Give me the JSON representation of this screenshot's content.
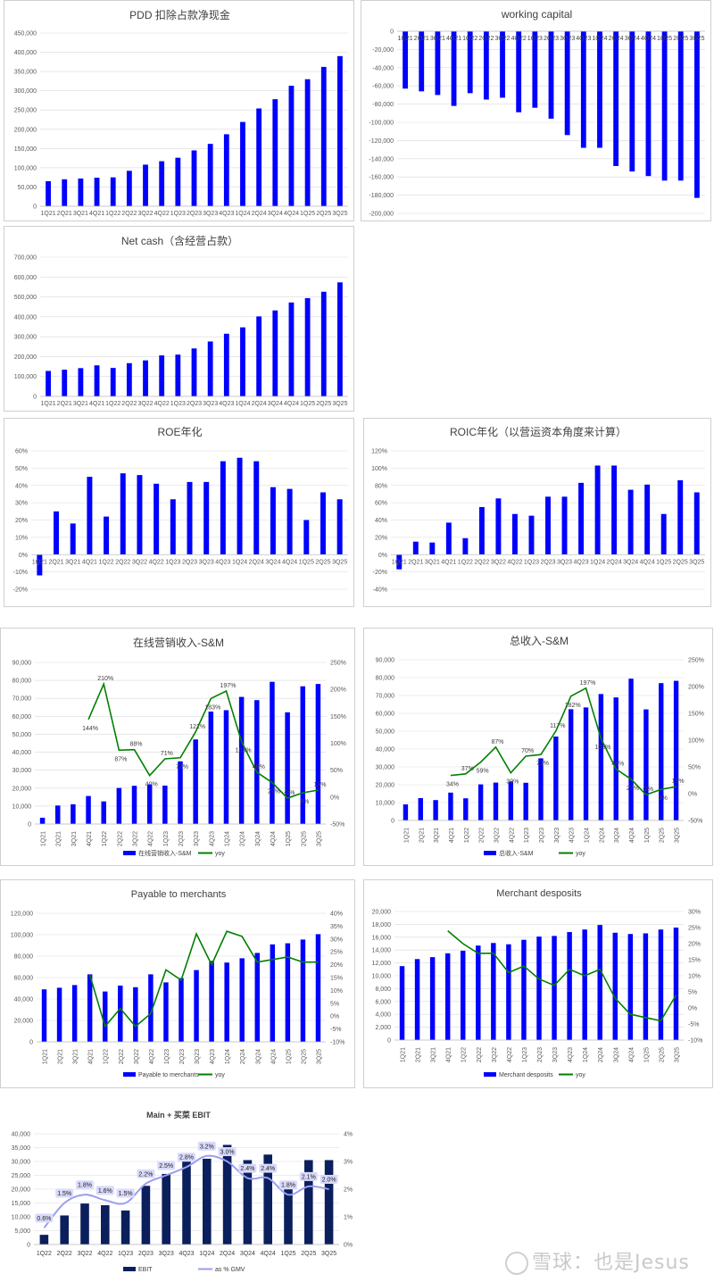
{
  "colors": {
    "bar": "#0000ff",
    "line": "#008000",
    "navy": "#0a1f5c",
    "lavender": "#9a9ef0",
    "axis": "#d9d9d9",
    "text": "#595959"
  },
  "watermark": "雪球：也是Jesus",
  "chart_data": [
    {
      "id": "c1",
      "type": "bar",
      "title": "PDD 扣除占款净现金",
      "categories": [
        "1Q21",
        "2Q21",
        "3Q21",
        "4Q21",
        "1Q22",
        "2Q22",
        "3Q22",
        "4Q22",
        "1Q23",
        "2Q23",
        "3Q23",
        "4Q23",
        "1Q24",
        "2Q24",
        "3Q24",
        "4Q24",
        "1Q25",
        "2Q25",
        "3Q25"
      ],
      "category_label_mode": "concat",
      "values": [
        65000,
        70000,
        72000,
        74000,
        75000,
        92000,
        108000,
        117000,
        126000,
        145000,
        162000,
        187000,
        219000,
        254000,
        278000,
        313000,
        330000,
        362000,
        390000
      ],
      "ylim": [
        0,
        450000
      ],
      "yticks": [
        0,
        50000,
        100000,
        150000,
        200000,
        250000,
        300000,
        350000,
        400000,
        450000
      ],
      "tick_labels": [
        "0",
        "50,000",
        "100,000",
        "150,000",
        "200,000",
        "250,000",
        "300,000",
        "350,000",
        "400,000",
        "450,000"
      ]
    },
    {
      "id": "c2",
      "type": "bar",
      "title": "working capital",
      "categories": [
        "1Q21",
        "2Q21",
        "3Q21",
        "4Q21",
        "1Q22",
        "2Q22",
        "3Q22",
        "4Q22",
        "1Q23",
        "2Q23",
        "3Q23",
        "4Q23",
        "1Q24",
        "2Q24",
        "3Q24",
        "4Q24",
        "1Q25",
        "2Q25",
        "3Q25"
      ],
      "category_label_mode": "concat-top",
      "values": [
        -63000,
        -66000,
        -70000,
        -82000,
        -68000,
        -75000,
        -73000,
        -89000,
        -84000,
        -96000,
        -114000,
        -128000,
        -128000,
        -148000,
        -154000,
        -159000,
        -164000,
        -164000,
        -183000
      ],
      "ylim": [
        -200000,
        0
      ],
      "yticks": [
        0,
        -20000,
        -40000,
        -60000,
        -80000,
        -100000,
        -120000,
        -140000,
        -160000,
        -180000,
        -200000
      ],
      "tick_labels": [
        "0",
        "-20,000",
        "-40,000",
        "-60,000",
        "-80,000",
        "-100,000",
        "-120,000",
        "-140,000",
        "-160,000",
        "-180,000",
        "-200,000"
      ]
    },
    {
      "id": "c3",
      "type": "bar",
      "title": "Net cash（含经营占款）",
      "categories": [
        "1Q21",
        "2Q21",
        "3Q21",
        "4Q21",
        "1Q22",
        "2Q22",
        "3Q22",
        "4Q22",
        "1Q23",
        "2Q23",
        "3Q23",
        "4Q23",
        "1Q24",
        "2Q24",
        "3Q24",
        "4Q24",
        "1Q25",
        "2Q25",
        "3Q25"
      ],
      "category_label_mode": "concat",
      "values": [
        128000,
        134000,
        142000,
        156000,
        143000,
        167000,
        181000,
        206000,
        210000,
        241000,
        276000,
        315000,
        347000,
        402000,
        432000,
        472000,
        494000,
        526000,
        573000
      ],
      "ylim": [
        0,
        700000
      ],
      "yticks": [
        0,
        100000,
        200000,
        300000,
        400000,
        500000,
        600000,
        700000
      ],
      "tick_labels": [
        "0",
        "100,000",
        "200,000",
        "300,000",
        "400,000",
        "500,000",
        "600,000",
        "700,000"
      ]
    },
    {
      "id": "c4",
      "type": "bar",
      "title": "ROE年化",
      "categories": [
        "1Q21",
        "2Q21",
        "3Q21",
        "4Q21",
        "1Q22",
        "2Q22",
        "3Q22",
        "4Q22",
        "1Q23",
        "2Q23",
        "3Q23",
        "4Q23",
        "1Q24",
        "2Q24",
        "3Q24",
        "4Q24",
        "1Q25",
        "2Q25",
        "3Q25"
      ],
      "category_label_mode": "concat",
      "values": [
        -12,
        25,
        18,
        45,
        22,
        47,
        46,
        41,
        32,
        42,
        42,
        54,
        56,
        54,
        39,
        38,
        20,
        36,
        32
      ],
      "ylim": [
        -20,
        60
      ],
      "yticks": [
        -20,
        -10,
        0,
        10,
        20,
        30,
        40,
        50,
        60
      ],
      "tick_labels": [
        "-20%",
        "-10%",
        "0%",
        "10%",
        "20%",
        "30%",
        "40%",
        "50%",
        "60%"
      ]
    },
    {
      "id": "c5",
      "type": "bar",
      "title": "ROIC年化（以营运资本角度来计算）",
      "categories": [
        "1Q21",
        "2Q21",
        "3Q21",
        "4Q21",
        "1Q22",
        "2Q22",
        "3Q22",
        "4Q22",
        "1Q23",
        "2Q23",
        "3Q23",
        "4Q23",
        "1Q24",
        "2Q24",
        "3Q24",
        "4Q24",
        "1Q25",
        "2Q25",
        "3Q25"
      ],
      "category_label_mode": "concat",
      "values": [
        -17,
        15,
        14,
        37,
        19,
        55,
        65,
        47,
        45,
        67,
        67,
        83,
        103,
        103,
        75,
        81,
        47,
        86,
        72
      ],
      "ylim": [
        -40,
        120
      ],
      "yticks": [
        -40,
        -20,
        0,
        20,
        40,
        60,
        80,
        100,
        120
      ],
      "tick_labels": [
        "-40%",
        "-20%",
        "0%",
        "20%",
        "40%",
        "60%",
        "80%",
        "100%",
        "120%"
      ]
    },
    {
      "id": "c6",
      "type": "bar+line",
      "title": "在线营销收入-S&M",
      "categories": [
        "1Q21",
        "2Q21",
        "3Q21",
        "4Q21",
        "1Q22",
        "2Q22",
        "3Q22",
        "4Q22",
        "1Q23",
        "2Q23",
        "3Q23",
        "4Q23",
        "1Q24",
        "2Q24",
        "3Q24",
        "4Q24",
        "1Q25",
        "2Q25",
        "3Q25"
      ],
      "category_label_mode": "rotated",
      "series": [
        {
          "name": "在线营销收入-S&M",
          "kind": "bar",
          "values": [
            3500,
            10300,
            11000,
            15600,
            12600,
            20100,
            21300,
            22100,
            21400,
            34900,
            47100,
            62600,
            63400,
            70800,
            69000,
            79200,
            62200,
            76700,
            78000
          ]
        },
        {
          "name": "yoy",
          "kind": "line",
          "values": [
            null,
            null,
            null,
            144,
            210,
            87,
            88,
            40,
            71,
            73,
            121,
            183,
            197,
            103,
            46,
            27,
            -2,
            8,
            13
          ]
        }
      ],
      "data_labels": [
        "",
        "",
        "",
        "144%",
        "210%",
        "87%",
        "88%",
        "40%",
        "71%",
        "73%",
        "121%",
        "183%",
        "197%",
        "103%",
        "46%",
        "27%",
        "-2%",
        "8%",
        "13%"
      ],
      "ylim": [
        0,
        90000
      ],
      "yticks": [
        0,
        10000,
        20000,
        30000,
        40000,
        50000,
        60000,
        70000,
        80000,
        90000
      ],
      "tick_labels": [
        "0",
        "10,000",
        "20,000",
        "30,000",
        "40,000",
        "50,000",
        "60,000",
        "70,000",
        "80,000",
        "90,000"
      ],
      "y2lim": [
        -50,
        250
      ],
      "y2ticks": [
        -50,
        0,
        50,
        100,
        150,
        200,
        250
      ],
      "y2_labels": [
        "-50%",
        "0%",
        "50%",
        "100%",
        "150%",
        "200%",
        "250%"
      ],
      "legend": [
        "在线营销收入-S&M",
        "yoy"
      ]
    },
    {
      "id": "c7",
      "type": "bar+line",
      "title": "总收入-S&M",
      "categories": [
        "1Q21",
        "2Q21",
        "3Q21",
        "4Q21",
        "1Q22",
        "2Q22",
        "3Q22",
        "4Q22",
        "1Q23",
        "2Q23",
        "3Q23",
        "4Q23",
        "1Q24",
        "2Q24",
        "3Q24",
        "4Q24",
        "1Q25",
        "2Q25",
        "3Q25"
      ],
      "category_label_mode": "rotated",
      "series": [
        {
          "name": "总收入-S&M",
          "kind": "bar",
          "values": [
            9000,
            12500,
            11400,
            15600,
            12400,
            20200,
            21200,
            21800,
            21100,
            34800,
            47000,
            62300,
            63300,
            70800,
            68900,
            79400,
            62200,
            76900,
            78200
          ]
        },
        {
          "name": "yoy",
          "kind": "line",
          "values": [
            null,
            null,
            null,
            34,
            37,
            59,
            87,
            39,
            70,
            73,
            117,
            182,
            197,
            103,
            46,
            27,
            -2,
            8,
            13
          ]
        }
      ],
      "data_labels": [
        "",
        "",
        "",
        "34%",
        "37%",
        "59%",
        "87%",
        "39%",
        "70%",
        "73%",
        "117%",
        "182%",
        "197%",
        "103%",
        "46%",
        "27%",
        "-2%",
        "8%",
        "13%"
      ],
      "ylim": [
        0,
        90000
      ],
      "yticks": [
        0,
        10000,
        20000,
        30000,
        40000,
        50000,
        60000,
        70000,
        80000,
        90000
      ],
      "tick_labels": [
        "0",
        "10,000",
        "20,000",
        "30,000",
        "40,000",
        "50,000",
        "60,000",
        "70,000",
        "80,000",
        "90,000"
      ],
      "y2lim": [
        -50,
        250
      ],
      "y2ticks": [
        -50,
        0,
        50,
        100,
        150,
        200,
        250
      ],
      "y2_labels": [
        "-50%",
        "0%",
        "50%",
        "100%",
        "150%",
        "200%",
        "250%"
      ],
      "legend": [
        "总收入-S&M",
        "yoy"
      ]
    },
    {
      "id": "c8",
      "type": "bar+line",
      "title": "Payable to merchants",
      "categories": [
        "1Q21",
        "2Q21",
        "3Q21",
        "4Q21",
        "1Q22",
        "2Q22",
        "3Q22",
        "4Q22",
        "1Q23",
        "2Q23",
        "3Q23",
        "4Q23",
        "1Q24",
        "2Q24",
        "3Q24",
        "4Q24",
        "1Q25",
        "2Q25",
        "3Q25"
      ],
      "category_label_mode": "rotated",
      "series": [
        {
          "name": "Payable to merchants",
          "kind": "bar",
          "values": [
            49000,
            50500,
            53000,
            63000,
            47000,
            52500,
            51000,
            63000,
            55500,
            59500,
            67000,
            75500,
            74000,
            78000,
            83000,
            91000,
            92000,
            95500,
            100500
          ]
        },
        {
          "name": "yoy",
          "kind": "line",
          "values": [
            null,
            null,
            null,
            16,
            -4,
            3,
            -4,
            1,
            18,
            14,
            32,
            20,
            33,
            31,
            21,
            22,
            23,
            21,
            21
          ]
        }
      ],
      "ylim": [
        0,
        120000
      ],
      "yticks": [
        0,
        20000,
        40000,
        60000,
        80000,
        100000,
        120000
      ],
      "tick_labels": [
        "0",
        "20,000",
        "40,000",
        "60,000",
        "80,000",
        "100,000",
        "120,000"
      ],
      "y2lim": [
        -10,
        40
      ],
      "y2ticks": [
        -10,
        -5,
        0,
        5,
        10,
        15,
        20,
        25,
        30,
        35,
        40
      ],
      "y2_labels": [
        "-10%",
        "-5%",
        "0%",
        "5%",
        "10%",
        "15%",
        "20%",
        "25%",
        "30%",
        "35%",
        "40%"
      ],
      "legend": [
        "Payable to merchants",
        "yoy"
      ]
    },
    {
      "id": "c9",
      "type": "bar+line",
      "title": "Merchant desposits",
      "categories": [
        "1Q21",
        "2Q21",
        "3Q21",
        "4Q21",
        "1Q22",
        "2Q22",
        "3Q22",
        "4Q22",
        "1Q23",
        "2Q23",
        "3Q23",
        "4Q23",
        "1Q24",
        "2Q24",
        "3Q24",
        "4Q24",
        "1Q25",
        "2Q25",
        "3Q25"
      ],
      "category_label_mode": "rotated",
      "series": [
        {
          "name": "Merchant desposits",
          "kind": "bar",
          "values": [
            11500,
            12600,
            12900,
            13500,
            13900,
            14700,
            15100,
            14900,
            15600,
            16100,
            16200,
            16800,
            17200,
            17900,
            16700,
            16500,
            16600,
            17200,
            17500
          ]
        },
        {
          "name": "yoy",
          "kind": "line",
          "values": [
            null,
            null,
            null,
            24,
            20,
            17,
            17,
            11,
            13,
            9,
            7,
            12,
            10,
            12,
            3,
            -2,
            -3,
            -4,
            4
          ]
        }
      ],
      "ylim": [
        0,
        20000
      ],
      "yticks": [
        0,
        2000,
        4000,
        6000,
        8000,
        10000,
        12000,
        14000,
        16000,
        18000,
        20000
      ],
      "tick_labels": [
        "0",
        "2,000",
        "4,000",
        "6,000",
        "8,000",
        "10,000",
        "12,000",
        "14,000",
        "16,000",
        "18,000",
        "20,000"
      ],
      "y2lim": [
        -10,
        30
      ],
      "y2ticks": [
        -10,
        -5,
        0,
        5,
        10,
        15,
        20,
        25,
        30
      ],
      "y2_labels": [
        "-10%",
        "-5%",
        "0%",
        "5%",
        "10%",
        "15%",
        "20%",
        "25%",
        "30%"
      ],
      "legend": [
        "Merchant desposits",
        "yoy"
      ]
    },
    {
      "id": "c10",
      "type": "bar+line",
      "title": "Main + 买菜 EBIT",
      "categories": [
        "1Q22",
        "2Q22",
        "3Q22",
        "4Q22",
        "1Q23",
        "2Q23",
        "3Q23",
        "4Q23",
        "1Q24",
        "2Q24",
        "3Q24",
        "4Q24",
        "1Q25",
        "2Q25",
        "3Q25"
      ],
      "category_label_mode": "flat",
      "series": [
        {
          "name": "EBIT",
          "kind": "bar",
          "values": [
            3500,
            10500,
            14800,
            14200,
            12300,
            21200,
            25500,
            30500,
            31000,
            36000,
            30500,
            32500,
            20200,
            30500,
            30500
          ]
        },
        {
          "name": "as % GMV",
          "kind": "line",
          "values": [
            0.6,
            1.5,
            1.8,
            1.6,
            1.5,
            2.2,
            2.5,
            2.8,
            3.2,
            3.0,
            2.4,
            2.4,
            1.8,
            2.1,
            2.0
          ]
        }
      ],
      "data_labels": [
        "0.6%",
        "1.5%",
        "1.8%",
        "1.6%",
        "1.5%",
        "2.2%",
        "2.5%",
        "2.8%",
        "3.2%",
        "3.0%",
        "2.4%",
        "2.4%",
        "1.8%",
        "2.1%",
        "2.0%"
      ],
      "ylim": [
        0,
        40000
      ],
      "yticks": [
        0,
        5000,
        10000,
        15000,
        20000,
        25000,
        30000,
        35000,
        40000
      ],
      "tick_labels": [
        "0",
        "5,000",
        "10,000",
        "15,000",
        "20,000",
        "25,000",
        "30,000",
        "35,000",
        "40,000"
      ],
      "y2lim": [
        0,
        4
      ],
      "y2ticks": [
        0,
        1,
        2,
        3,
        4
      ],
      "y2_labels": [
        "0%",
        "1%",
        "2%",
        "3%",
        "4%"
      ],
      "legend": [
        "EBIT",
        "as % GMV"
      ]
    }
  ]
}
